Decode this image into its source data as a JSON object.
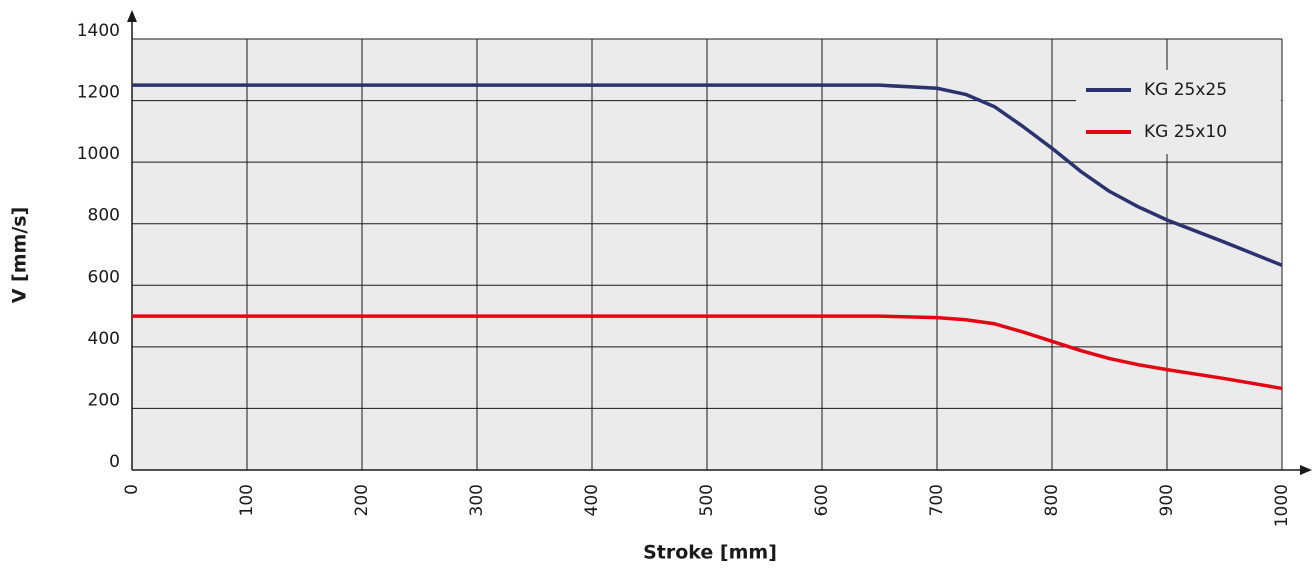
{
  "chart_data": {
    "type": "line",
    "xlabel": "Stroke [mm]",
    "ylabel": "V [mm/s]",
    "x": [
      0,
      100,
      200,
      300,
      400,
      500,
      600,
      650,
      700,
      725,
      750,
      775,
      800,
      825,
      850,
      875,
      900,
      950,
      1000
    ],
    "series": [
      {
        "name": "KG 25x25",
        "color": "#2b3270",
        "values": [
          1250,
          1250,
          1250,
          1250,
          1250,
          1250,
          1250,
          1250,
          1240,
          1220,
          1180,
          1115,
          1045,
          970,
          905,
          855,
          812,
          740,
          665
        ]
      },
      {
        "name": "KG 25x10",
        "color": "#e30613",
        "values": [
          500,
          500,
          500,
          500,
          500,
          500,
          500,
          500,
          495,
          488,
          475,
          448,
          418,
          388,
          362,
          342,
          326,
          297,
          265
        ]
      }
    ],
    "xlim": [
      0,
      1000
    ],
    "xticks": [
      0,
      100,
      200,
      300,
      400,
      500,
      600,
      700,
      800,
      900,
      1000
    ],
    "ylim": [
      0,
      1400
    ],
    "yticks": [
      0,
      200,
      400,
      600,
      800,
      1000,
      1200,
      1400
    ],
    "grid": true,
    "legend": "upper right"
  }
}
